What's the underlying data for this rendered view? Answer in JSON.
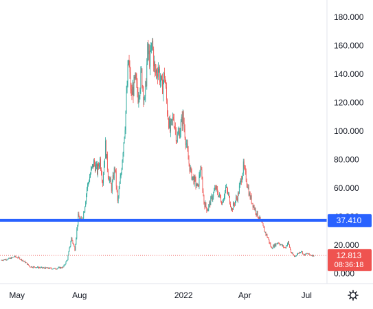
{
  "chart_data": {
    "type": "candlestick",
    "title": "",
    "xlabel": "",
    "ylabel": "",
    "ylim": [
      -7,
      192
    ],
    "grid": false,
    "y_ticks": [
      "180.000",
      "160.000",
      "140.000",
      "120.000",
      "100.000",
      "80.000",
      "60.000",
      "40.000",
      "20.000",
      "0.000"
    ],
    "y_tick_values": [
      180,
      160,
      140,
      120,
      100,
      80,
      60,
      40,
      20,
      0
    ],
    "x_ticks": [
      "May",
      "Aug",
      "2022",
      "Apr",
      "Jul"
    ],
    "x_tick_dates": [
      "2021-05-01",
      "2021-08-01",
      "2022-01-01",
      "2022-04-01",
      "2022-07-01"
    ],
    "x_range": [
      "2021-04-06",
      "2022-07-31"
    ],
    "colors": {
      "up": "#26a69a",
      "down": "#ef5350",
      "level_line": "#2962ff",
      "price_line": "#ef5350"
    },
    "price_level": {
      "value": 37.41,
      "label": "37.410"
    },
    "last_price": {
      "value": 12.813,
      "label": "12.813",
      "countdown": "08:36:18"
    },
    "close_series": [
      [
        "2021-04-08",
        9.5
      ],
      [
        "2021-04-20",
        10.5
      ],
      [
        "2021-04-27",
        12.0
      ],
      [
        "2021-05-04",
        11.0
      ],
      [
        "2021-05-13",
        8.0
      ],
      [
        "2021-05-20",
        5.0
      ],
      [
        "2021-06-07",
        4.0
      ],
      [
        "2021-06-25",
        3.5
      ],
      [
        "2021-07-08",
        4.5
      ],
      [
        "2021-07-14",
        10.0
      ],
      [
        "2021-07-20",
        25.0
      ],
      [
        "2021-07-25",
        17.0
      ],
      [
        "2021-07-30",
        40.0
      ],
      [
        "2021-08-04",
        37.0
      ],
      [
        "2021-08-08",
        45.0
      ],
      [
        "2021-08-12",
        60.0
      ],
      [
        "2021-08-17",
        70.0
      ],
      [
        "2021-08-22",
        78.0
      ],
      [
        "2021-08-27",
        72.0
      ],
      [
        "2021-08-31",
        80.0
      ],
      [
        "2021-09-04",
        65.0
      ],
      [
        "2021-09-08",
        90.0
      ],
      [
        "2021-09-12",
        70.0
      ],
      [
        "2021-09-17",
        60.0
      ],
      [
        "2021-09-22",
        75.0
      ],
      [
        "2021-09-26",
        50.0
      ],
      [
        "2021-10-01",
        70.0
      ],
      [
        "2021-10-07",
        105.0
      ],
      [
        "2021-10-12",
        150.0
      ],
      [
        "2021-10-16",
        125.0
      ],
      [
        "2021-10-22",
        135.0
      ],
      [
        "2021-10-26",
        125.0
      ],
      [
        "2021-10-31",
        140.0
      ],
      [
        "2021-11-05",
        120.0
      ],
      [
        "2021-11-09",
        155.0
      ],
      [
        "2021-11-13",
        150.0
      ],
      [
        "2021-11-16",
        162.0
      ],
      [
        "2021-11-20",
        140.0
      ],
      [
        "2021-11-25",
        145.0
      ],
      [
        "2021-11-30",
        130.0
      ],
      [
        "2021-12-04",
        140.0
      ],
      [
        "2021-12-08",
        115.0
      ],
      [
        "2021-12-12",
        100.0
      ],
      [
        "2021-12-17",
        110.0
      ],
      [
        "2021-12-22",
        95.0
      ],
      [
        "2021-12-26",
        100.0
      ],
      [
        "2021-12-31",
        110.0
      ],
      [
        "2022-01-04",
        95.0
      ],
      [
        "2022-01-08",
        80.0
      ],
      [
        "2022-01-12",
        70.0
      ],
      [
        "2022-01-17",
        65.0
      ],
      [
        "2022-01-22",
        60.0
      ],
      [
        "2022-01-26",
        75.0
      ],
      [
        "2022-01-31",
        50.0
      ],
      [
        "2022-02-05",
        45.0
      ],
      [
        "2022-02-09",
        50.0
      ],
      [
        "2022-02-13",
        55.0
      ],
      [
        "2022-02-17",
        60.0
      ],
      [
        "2022-02-22",
        55.0
      ],
      [
        "2022-02-27",
        50.0
      ],
      [
        "2022-03-04",
        60.0
      ],
      [
        "2022-03-08",
        55.0
      ],
      [
        "2022-03-13",
        45.0
      ],
      [
        "2022-03-17",
        50.0
      ],
      [
        "2022-03-22",
        55.0
      ],
      [
        "2022-03-26",
        65.0
      ],
      [
        "2022-03-30",
        75.0
      ],
      [
        "2022-04-04",
        65.0
      ],
      [
        "2022-04-08",
        55.0
      ],
      [
        "2022-04-12",
        50.0
      ],
      [
        "2022-04-16",
        45.0
      ],
      [
        "2022-04-21",
        40.0
      ],
      [
        "2022-04-26",
        35.0
      ],
      [
        "2022-04-30",
        30.0
      ],
      [
        "2022-05-05",
        25.0
      ],
      [
        "2022-05-10",
        18.0
      ],
      [
        "2022-05-15",
        20.0
      ],
      [
        "2022-05-20",
        22.0
      ],
      [
        "2022-05-25",
        20.0
      ],
      [
        "2022-05-30",
        18.0
      ],
      [
        "2022-06-04",
        22.0
      ],
      [
        "2022-06-08",
        15.0
      ],
      [
        "2022-06-13",
        12.0
      ],
      [
        "2022-06-18",
        14.0
      ],
      [
        "2022-06-23",
        16.0
      ],
      [
        "2022-06-27",
        13.0
      ],
      [
        "2022-07-02",
        14.0
      ],
      [
        "2022-07-07",
        13.0
      ],
      [
        "2022-07-12",
        12.8
      ]
    ]
  },
  "ui": {
    "settings_icon": "gear-icon"
  }
}
